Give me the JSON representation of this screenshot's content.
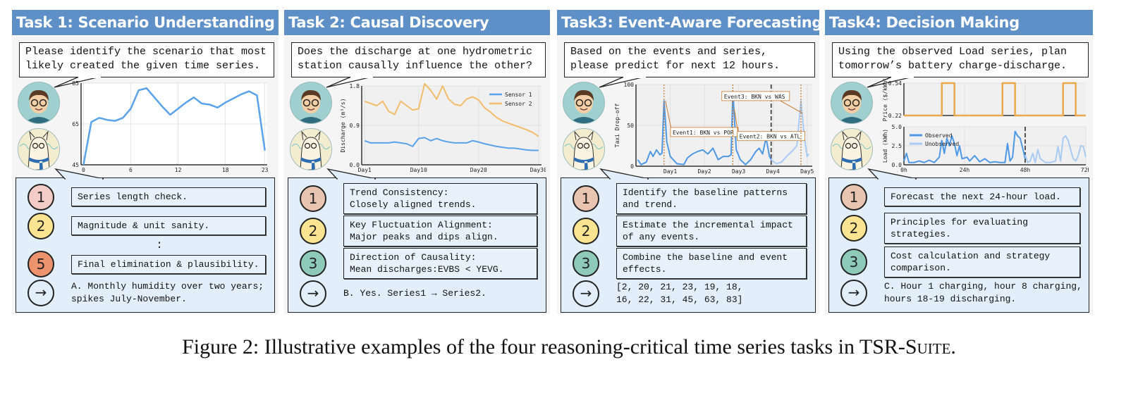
{
  "tasks": [
    {
      "title": "Task 1: Scenario Understanding",
      "question": "Please identify the scenario that most\nlikely created the given time series.",
      "steps": [
        {
          "num": "1",
          "text": "Series length check.",
          "color": "#f3cbc7"
        },
        {
          "num": "2",
          "text": "Magnitude & unit sanity.",
          "color": "#fbe491"
        },
        {
          "ellipsis": ":"
        },
        {
          "num": "5",
          "text": "Final elimination & plausibility.",
          "color": "#ec926c"
        }
      ],
      "answer_icon": "arrow-right-icon",
      "answer": "A. Monthly humidity over two years;\nspikes July-November."
    },
    {
      "title": "Task 2: Causal Discovery",
      "question": "Does the discharge at one hydrometric\nstation causally influence the other?",
      "steps": [
        {
          "num": "1",
          "text": "Trend Consistency:\nClosely aligned trends.",
          "color": "#e9c4b0"
        },
        {
          "num": "2",
          "text": "Key Fluctuation Alignment:\nMajor peaks and dips align.",
          "color": "#fbe491"
        },
        {
          "num": "3",
          "text": "Direction of Causality:\nMean discharges:EVBS < YEVG.",
          "color": "#8ecab8"
        }
      ],
      "answer_icon": "arrow-right-icon",
      "answer": "B. Yes. Series1 → Series2."
    },
    {
      "title": "Task3: Event-Aware Forecasting",
      "question": "Based on the events and series,\nplease predict for next 12 hours.",
      "steps": [
        {
          "num": "1",
          "text": "Identify the baseline patterns\nand trend.",
          "color": "#e9c4b0"
        },
        {
          "num": "2",
          "text": "Estimate the incremental impact\nof any events.",
          "color": "#fbe491"
        },
        {
          "num": "3",
          "text": "Combine the baseline and event\neffects.",
          "color": "#8ecab8"
        }
      ],
      "answer_icon": "arrow-right-icon",
      "answer": "[2, 20, 21, 23, 19, 18,\n16, 22, 31, 45, 63, 83]"
    },
    {
      "title": "Task4: Decision Making",
      "question": "Using the observed Load series, plan\ntomorrow’s battery charge-discharge.",
      "steps": [
        {
          "num": "1",
          "text": "Forecast the next 24-hour load.",
          "color": "#e9c4b0"
        },
        {
          "num": "2",
          "text": "Principles for evaluating\nstrategies.",
          "color": "#fbe491"
        },
        {
          "num": "3",
          "text": "Cost calculation and strategy\ncomparison.",
          "color": "#8ecab8"
        }
      ],
      "answer_icon": "arrow-right-icon",
      "answer": "C. Hour 1 charging, hour 8 charging,\nhours 18-19 discharging."
    }
  ],
  "chart_data": [
    {
      "type": "line",
      "x": [
        0,
        1,
        2,
        3,
        4,
        5,
        6,
        7,
        8,
        9,
        10,
        11,
        12,
        13,
        14,
        15,
        16,
        17,
        18,
        19,
        20,
        21,
        22,
        23
      ],
      "values": [
        45,
        66,
        68,
        67,
        66.5,
        68,
        72.5,
        81.5,
        82.5,
        78,
        73.5,
        69.5,
        72.5,
        75.5,
        78,
        75,
        74.5,
        73,
        75.5,
        77.5,
        79.5,
        81,
        79,
        52
      ],
      "ylim": [
        45,
        85
      ],
      "yticks": [
        "45",
        "65",
        "85"
      ],
      "xticks": [
        "0",
        "6",
        "12",
        "18",
        "23"
      ],
      "color": "#5aa2ea",
      "grid": true
    },
    {
      "type": "line",
      "ylabel": "Discharge (m³/s)",
      "ylim": [
        0,
        1.8
      ],
      "yticks": [
        "0.0",
        "0.9",
        "1.8"
      ],
      "xticks": [
        "Day1",
        "Day10",
        "Day20",
        "Day30"
      ],
      "x": [
        1,
        2,
        3,
        4,
        5,
        6,
        7,
        8,
        9,
        10,
        11,
        12,
        13,
        14,
        15,
        16,
        17,
        18,
        19,
        20,
        21,
        22,
        23,
        24,
        25,
        26,
        27,
        28,
        29,
        30
      ],
      "series": [
        {
          "name": "Sensor 1",
          "color": "#5aa2ea",
          "values": [
            0.55,
            0.5,
            0.5,
            0.5,
            0.5,
            0.52,
            0.5,
            0.48,
            0.42,
            0.6,
            0.62,
            0.55,
            0.6,
            0.55,
            0.52,
            0.5,
            0.5,
            0.5,
            0.55,
            0.52,
            0.48,
            0.45,
            0.42,
            0.4,
            0.38,
            0.38,
            0.36,
            0.34,
            0.33,
            0.33
          ]
        },
        {
          "name": "Sensor 2",
          "color": "#f2bd6b",
          "values": [
            1.45,
            1.4,
            1.35,
            1.45,
            1.22,
            1.15,
            1.45,
            1.35,
            1.25,
            1.28,
            1.85,
            1.7,
            1.5,
            1.8,
            1.5,
            1.38,
            1.35,
            1.5,
            1.55,
            1.48,
            1.3,
            1.2,
            1.08,
            1.0,
            0.95,
            0.9,
            0.85,
            0.8,
            0.74,
            0.65
          ]
        }
      ],
      "legend": "top-right",
      "grid": true
    },
    {
      "type": "line",
      "ylabel": "Taxi Drop-off",
      "ylim": [
        0,
        100
      ],
      "yticks": [
        "0",
        "50",
        "100"
      ],
      "xticks": [
        "Day1",
        "Day2",
        "Day3",
        "Day4",
        "Day5"
      ],
      "series": [
        {
          "role": "observed",
          "color": "#4f98e6",
          "points": [
            [
              0.05,
              8
            ],
            [
              0.15,
              2
            ],
            [
              0.3,
              5
            ],
            [
              0.42,
              18
            ],
            [
              0.5,
              12
            ],
            [
              0.6,
              20
            ],
            [
              0.7,
              14
            ],
            [
              0.76,
              16
            ],
            [
              0.82,
              80
            ],
            [
              0.9,
              30
            ],
            [
              1.0,
              12
            ],
            [
              1.2,
              3
            ],
            [
              1.4,
              2
            ],
            [
              1.5,
              10
            ],
            [
              1.65,
              15
            ],
            [
              1.8,
              18
            ],
            [
              1.95,
              20
            ],
            [
              2.1,
              15
            ],
            [
              2.25,
              22
            ],
            [
              2.4,
              8
            ],
            [
              2.55,
              12
            ],
            [
              2.7,
              12
            ],
            [
              2.78,
              14
            ],
            [
              2.83,
              92
            ],
            [
              2.93,
              20
            ],
            [
              3.05,
              8
            ],
            [
              3.2,
              2
            ],
            [
              3.35,
              8
            ],
            [
              3.5,
              18
            ],
            [
              3.6,
              22
            ],
            [
              3.7,
              15
            ],
            [
              3.8,
              35
            ],
            [
              3.9,
              12
            ],
            [
              3.95,
              8
            ]
          ]
        },
        {
          "role": "forecast",
          "color": "#a9cbf3",
          "points": [
            [
              3.95,
              8
            ],
            [
              4.1,
              3
            ],
            [
              4.25,
              5
            ],
            [
              4.4,
              12
            ],
            [
              4.55,
              18
            ],
            [
              4.7,
              25
            ],
            [
              4.82,
              80
            ],
            [
              4.92,
              35
            ],
            [
              5.0,
              12
            ],
            [
              5.05,
              15
            ]
          ]
        }
      ],
      "forecast_start": 3.95,
      "events": [
        {
          "label": "Event1: BKN vs POR",
          "x": 0.82,
          "y": 80
        },
        {
          "label": "Event2: BKN vs ATL",
          "x": 2.83,
          "y": 70
        },
        {
          "label": "Event3: BKN vs WAS",
          "x": 4.82,
          "y": 65
        }
      ],
      "event_color": "#c8782a",
      "grid": true
    },
    {
      "type": "line",
      "ylabel": "Price ($/kWh)",
      "ylim": [
        0.22,
        0.54
      ],
      "yticks": [
        "0.22",
        "0.54"
      ],
      "color": "#e9a94c",
      "points": [
        [
          0,
          0.22
        ],
        [
          15,
          0.22
        ],
        [
          15,
          0.54
        ],
        [
          20,
          0.54
        ],
        [
          20,
          0.22
        ],
        [
          39,
          0.22
        ],
        [
          39,
          0.54
        ],
        [
          44,
          0.54
        ],
        [
          44,
          0.22
        ],
        [
          63,
          0.22
        ],
        [
          63,
          0.54
        ],
        [
          68,
          0.54
        ],
        [
          68,
          0.22
        ],
        [
          72,
          0.22
        ]
      ],
      "grid": true
    },
    {
      "type": "line",
      "ylabel": "Load (kWh)",
      "ylim": [
        0,
        5.0
      ],
      "yticks": [
        "0.0",
        "2.5",
        "5.0"
      ],
      "xticks": [
        "0h",
        "24h",
        "48h",
        "72h"
      ],
      "series": [
        {
          "name": "Observed",
          "color": "#4f98e6",
          "points": [
            [
              0,
              0.5
            ],
            [
              1,
              1.5
            ],
            [
              2,
              0.3
            ],
            [
              4,
              0.3
            ],
            [
              6,
              0.5
            ],
            [
              8,
              0.3
            ],
            [
              10,
              0.6
            ],
            [
              12,
              0.3
            ],
            [
              14,
              1.0
            ],
            [
              15,
              3.2
            ],
            [
              16,
              1.5
            ],
            [
              17,
              3.5
            ],
            [
              18,
              2.5
            ],
            [
              19,
              3.8
            ],
            [
              20,
              2.8
            ],
            [
              21,
              1.2
            ],
            [
              22,
              2.5
            ],
            [
              23,
              0.8
            ],
            [
              25,
              1.0
            ],
            [
              26,
              0.5
            ],
            [
              28,
              1.2
            ],
            [
              30,
              0.4
            ],
            [
              32,
              0.8
            ],
            [
              34,
              0.3
            ],
            [
              36,
              0.4
            ],
            [
              38,
              0.3
            ],
            [
              40,
              0.3
            ],
            [
              41,
              2.8
            ],
            [
              42,
              0.5
            ],
            [
              43,
              1.0
            ],
            [
              44,
              4.4
            ],
            [
              45,
              3.8
            ],
            [
              46,
              3.5
            ],
            [
              47,
              2.2
            ],
            [
              48,
              0.8
            ]
          ]
        },
        {
          "name": "Unobserved",
          "color": "#a9cbf3",
          "points": [
            [
              48,
              1.3
            ],
            [
              49,
              0.3
            ],
            [
              50,
              0.5
            ],
            [
              51,
              1.5
            ],
            [
              52,
              0.3
            ],
            [
              53,
              2.0
            ],
            [
              54,
              0.8
            ],
            [
              56,
              0.3
            ],
            [
              58,
              0.3
            ],
            [
              60,
              0.5
            ],
            [
              61,
              2.4
            ],
            [
              62,
              0.5
            ],
            [
              63,
              3.5
            ],
            [
              64,
              3.8
            ],
            [
              65,
              3.2
            ],
            [
              66,
              2.0
            ],
            [
              67,
              0.8
            ],
            [
              68,
              0.5
            ],
            [
              69,
              1.2
            ],
            [
              70,
              2.5
            ],
            [
              71,
              2.4
            ],
            [
              72,
              1.0
            ]
          ]
        }
      ],
      "split_at": "48h",
      "legend": "top-left",
      "grid": true
    }
  ],
  "caption": {
    "text": "Figure 2: Illustrative examples of the four reasoning-critical time series tasks in TSR-",
    "smallcaps": "Suite",
    "end": "."
  }
}
